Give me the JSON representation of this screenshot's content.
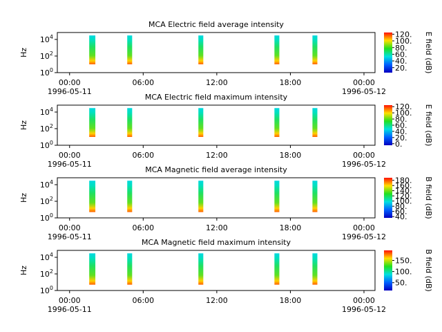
{
  "chart_data": [
    {
      "type": "spectrogram",
      "title": "MCA  Electric field average intensity",
      "ylabel": "Hz",
      "ylim": [
        1,
        68000
      ],
      "log_y": true,
      "yticks": [
        {
          "value": 1,
          "label": "10",
          "exp": "0"
        },
        {
          "value": 100,
          "label": "10",
          "exp": "2"
        },
        {
          "value": 10000,
          "label": "10",
          "exp": "4"
        }
      ],
      "xlim": [
        -1,
        24.9
      ],
      "xticks": [
        {
          "value": 0,
          "label": "00:00"
        },
        {
          "value": 6,
          "label": "06:00"
        },
        {
          "value": 12,
          "label": "12:00"
        },
        {
          "value": 18,
          "label": "18:00"
        },
        {
          "value": 24,
          "label": "00:00"
        }
      ],
      "dates": [
        "1996-05-11",
        "1996-05-12"
      ],
      "time_ranges": [
        [
          1.6,
          2.1
        ],
        [
          4.7,
          5.1
        ],
        [
          10.5,
          10.9
        ],
        [
          16.7,
          17.1
        ],
        [
          19.8,
          20.2
        ]
      ],
      "freq_range": [
        10,
        30000
      ],
      "colorbar_label": "E field (dB)",
      "clim": [
        5,
        125
      ],
      "cticks": [
        {
          "value": 20,
          "label": "20."
        },
        {
          "value": 40,
          "label": "40."
        },
        {
          "value": 60,
          "label": "60."
        },
        {
          "value": 80,
          "label": "80."
        },
        {
          "value": 100,
          "label": "100."
        },
        {
          "value": 120,
          "label": "120."
        }
      ]
    },
    {
      "type": "spectrogram",
      "title": "MCA  Electric field maximum intensity",
      "ylabel": "Hz",
      "ylim": [
        1,
        68000
      ],
      "log_y": true,
      "yticks": [
        {
          "value": 1,
          "label": "10",
          "exp": "0"
        },
        {
          "value": 100,
          "label": "10",
          "exp": "2"
        },
        {
          "value": 10000,
          "label": "10",
          "exp": "4"
        }
      ],
      "xlim": [
        -1,
        24.9
      ],
      "xticks": [
        {
          "value": 0,
          "label": "00:00"
        },
        {
          "value": 6,
          "label": "06:00"
        },
        {
          "value": 12,
          "label": "12:00"
        },
        {
          "value": 18,
          "label": "18:00"
        },
        {
          "value": 24,
          "label": "00:00"
        }
      ],
      "dates": [
        "1996-05-11",
        "1996-05-12"
      ],
      "time_ranges": [
        [
          1.6,
          2.1
        ],
        [
          4.7,
          5.1
        ],
        [
          10.5,
          10.9
        ],
        [
          16.7,
          17.1
        ],
        [
          19.8,
          20.2
        ]
      ],
      "freq_range": [
        10,
        30000
      ],
      "colorbar_label": "E field (dB)",
      "clim": [
        -5,
        125
      ],
      "cticks": [
        {
          "value": 0,
          "label": "0."
        },
        {
          "value": 20,
          "label": "20."
        },
        {
          "value": 40,
          "label": "40."
        },
        {
          "value": 60,
          "label": "60."
        },
        {
          "value": 80,
          "label": "80."
        },
        {
          "value": 100,
          "label": "100."
        },
        {
          "value": 120,
          "label": "120."
        }
      ]
    },
    {
      "type": "spectrogram",
      "title": "MCA  Magnetic field average intensity",
      "ylabel": "Hz",
      "ylim": [
        1,
        68000
      ],
      "log_y": true,
      "yticks": [
        {
          "value": 1,
          "label": "10",
          "exp": "0"
        },
        {
          "value": 100,
          "label": "10",
          "exp": "2"
        },
        {
          "value": 10000,
          "label": "10",
          "exp": "4"
        }
      ],
      "xlim": [
        -1,
        24.9
      ],
      "xticks": [
        {
          "value": 0,
          "label": "00:00"
        },
        {
          "value": 6,
          "label": "06:00"
        },
        {
          "value": 12,
          "label": "12:00"
        },
        {
          "value": 18,
          "label": "18:00"
        },
        {
          "value": 24,
          "label": "00:00"
        }
      ],
      "dates": [
        "1996-05-11",
        "1996-05-12"
      ],
      "time_ranges": [
        [
          1.6,
          2.1
        ],
        [
          4.7,
          5.1
        ],
        [
          10.5,
          10.9
        ],
        [
          16.7,
          17.1
        ],
        [
          19.8,
          20.2
        ]
      ],
      "freq_range": [
        5,
        30000
      ],
      "colorbar_label": "B field (dB)",
      "clim": [
        35,
        190
      ],
      "cticks": [
        {
          "value": 40,
          "label": "40."
        },
        {
          "value": 60,
          "label": "60."
        },
        {
          "value": 80,
          "label": "80."
        },
        {
          "value": 100,
          "label": "100."
        },
        {
          "value": 120,
          "label": "120."
        },
        {
          "value": 140,
          "label": "140."
        },
        {
          "value": 160,
          "label": "160."
        },
        {
          "value": 180,
          "label": "180."
        }
      ]
    },
    {
      "type": "spectrogram",
      "title": "MCA  Magnetic field maximum intensity",
      "ylabel": "Hz",
      "ylim": [
        1,
        68000
      ],
      "log_y": true,
      "yticks": [
        {
          "value": 1,
          "label": "10",
          "exp": "0"
        },
        {
          "value": 100,
          "label": "10",
          "exp": "2"
        },
        {
          "value": 10000,
          "label": "10",
          "exp": "4"
        }
      ],
      "xlim": [
        -1,
        24.9
      ],
      "xticks": [
        {
          "value": 0,
          "label": "00:00"
        },
        {
          "value": 6,
          "label": "06:00"
        },
        {
          "value": 12,
          "label": "12:00"
        },
        {
          "value": 18,
          "label": "18:00"
        },
        {
          "value": 24,
          "label": "00:00"
        }
      ],
      "dates": [
        "1996-05-11",
        "1996-05-12"
      ],
      "time_ranges": [
        [
          1.6,
          2.1
        ],
        [
          4.7,
          5.1
        ],
        [
          10.5,
          10.9
        ],
        [
          16.7,
          17.1
        ],
        [
          19.8,
          20.2
        ]
      ],
      "freq_range": [
        5,
        30000
      ],
      "colorbar_label": "B field (dB)",
      "clim": [
        15,
        195
      ],
      "cticks": [
        {
          "value": 50,
          "label": "50."
        },
        {
          "value": 100,
          "label": "100."
        },
        {
          "value": 150,
          "label": "150."
        }
      ]
    }
  ]
}
